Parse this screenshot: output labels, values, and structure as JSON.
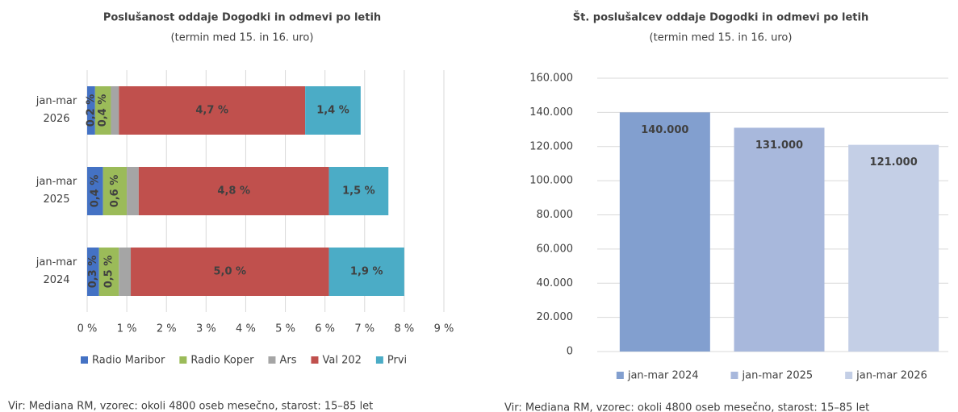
{
  "chart_data": [
    {
      "type": "bar",
      "orientation": "horizontal",
      "stacked": true,
      "title": "Poslušanost oddaje Dogodki in odmevi po letih",
      "subtitle": "(termin med 15. in 16. uro)",
      "categories": [
        "jan-mar 2026",
        "jan-mar 2025",
        "jan-mar 2024"
      ],
      "series": [
        {
          "name": "Radio Maribor",
          "color": "#4472c4",
          "values": [
            0.2,
            0.4,
            0.3
          ],
          "value_labels": [
            "0,2 %",
            "0,4 %",
            "0,3 %"
          ]
        },
        {
          "name": "Radio Koper",
          "color": "#9bbb59",
          "values": [
            0.4,
            0.6,
            0.5
          ],
          "value_labels": [
            "0,4 %",
            "0,6 %",
            "0,5 %"
          ]
        },
        {
          "name": "Ars",
          "color": "#a5a5a5",
          "values": [
            0.2,
            0.3,
            0.3
          ]
        },
        {
          "name": "Val 202",
          "color": "#c0504d",
          "values": [
            4.7,
            4.8,
            5.0
          ],
          "value_labels": [
            "4,7 %",
            "4,8 %",
            "5,0 %"
          ]
        },
        {
          "name": "Prvi",
          "color": "#4bacc6",
          "values": [
            1.4,
            1.5,
            1.9
          ],
          "value_labels": [
            "1,4 %",
            "1,5 %",
            "1,9 %"
          ]
        }
      ],
      "xlim": [
        0,
        9
      ],
      "xticks": [
        {
          "value": 0,
          "label": "0 %"
        },
        {
          "value": 1,
          "label": "1 %"
        },
        {
          "value": 2,
          "label": "2 %"
        },
        {
          "value": 3,
          "label": "3 %"
        },
        {
          "value": 4,
          "label": "4 %"
        },
        {
          "value": 5,
          "label": "5 %"
        },
        {
          "value": 6,
          "label": "6 %"
        },
        {
          "value": 7,
          "label": "7 %"
        },
        {
          "value": 8,
          "label": "8 %"
        },
        {
          "value": 9,
          "label": "9 %"
        }
      ],
      "grid": true,
      "legend": "bottom",
      "source": "Vir: Mediana RM, vzorec: okoli 4800 oseb mesečno, starost: 15–85 let"
    },
    {
      "type": "bar",
      "orientation": "vertical",
      "title": "Št. poslušalcev oddaje Dogodki in odmevi po letih",
      "subtitle": "(termin med 15. in 16. uro)",
      "categories": [
        "jan-mar 2024",
        "jan-mar 2025",
        "jan-mar 2026"
      ],
      "values": [
        140000,
        131000,
        121000
      ],
      "value_labels": [
        "140.000",
        "131.000",
        "121.000"
      ],
      "colors": [
        "#829fcf",
        "#a8b8dc",
        "#c4cfe6"
      ],
      "ylim": [
        0,
        160000
      ],
      "yticks": [
        0,
        {
          "value": 20000,
          "label": "20.000"
        },
        {
          "value": 40000,
          "label": "40.000"
        },
        {
          "value": 60000,
          "label": "60.000"
        },
        {
          "value": 80000,
          "label": "80.000"
        },
        {
          "value": 100000,
          "label": "100.000"
        },
        {
          "value": 120000,
          "label": "120.000"
        },
        {
          "value": 140000,
          "label": "140.000"
        },
        {
          "value": 160000,
          "label": "160.000"
        }
      ],
      "grid": true,
      "legend": "bottom",
      "source": "Vir: Mediana RM, vzorec: okoli 4800 oseb mesečno, starost: 15–85 let"
    }
  ]
}
